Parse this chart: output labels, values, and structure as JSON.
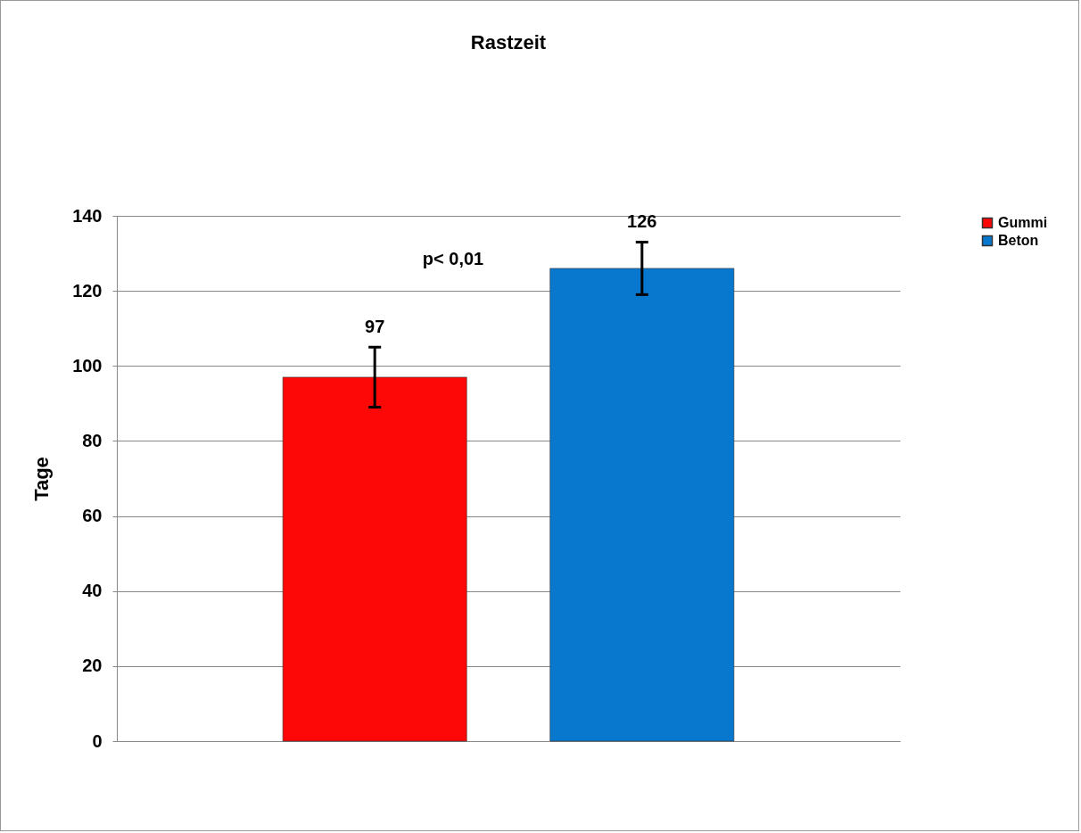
{
  "chart_data": {
    "type": "bar",
    "title": "Rastzeit",
    "ylabel": "Tage",
    "categories": [
      null
    ],
    "series": [
      {
        "name": "Gummi",
        "color": "#fe0707",
        "values": [
          97
        ],
        "errors": [
          8
        ]
      },
      {
        "name": "Beton",
        "color": "#0878cf",
        "values": [
          126
        ],
        "errors": [
          7
        ]
      }
    ],
    "ylim": [
      0,
      140
    ],
    "yticks": [
      0,
      20,
      40,
      60,
      80,
      100,
      120,
      140
    ],
    "grid": "y",
    "legend": "right",
    "data_labels": true,
    "tick_labels": "y",
    "annotations": [
      "p< 0,01"
    ]
  }
}
